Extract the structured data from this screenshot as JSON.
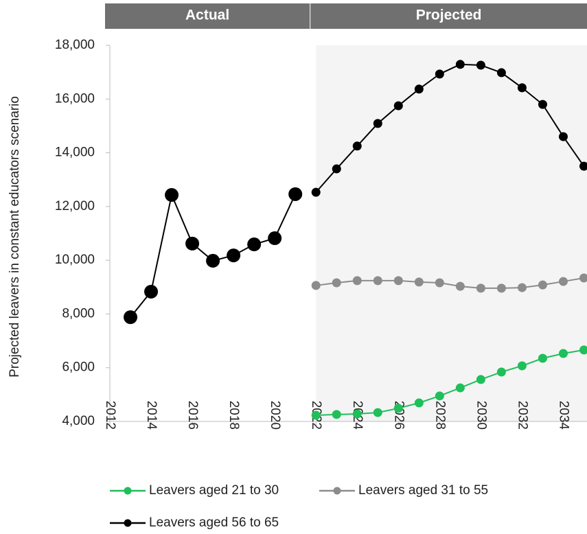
{
  "chart_data": {
    "type": "line",
    "period_labels": [
      "Actual",
      "Projected"
    ],
    "projection_start": 2022,
    "y_label": "Projected leavers in constant educators scenario",
    "x": [
      2013,
      2014,
      2015,
      2016,
      2017,
      2018,
      2019,
      2020,
      2021,
      2022,
      2023,
      2024,
      2025,
      2026,
      2027,
      2028,
      2029,
      2030,
      2031,
      2032,
      2033,
      2034,
      2035
    ],
    "series": [
      {
        "name": "Leavers aged 21 to 30",
        "color": "#1fbf5a",
        "values": [
          null,
          null,
          null,
          null,
          null,
          null,
          null,
          null,
          null,
          4230,
          4260,
          4280,
          4330,
          4490,
          4690,
          4950,
          5250,
          5560,
          5840,
          6070,
          6350,
          6530,
          6660
        ]
      },
      {
        "name": "Leavers aged 31 to 55",
        "color": "#8c8c8c",
        "values": [
          null,
          null,
          null,
          null,
          null,
          null,
          null,
          null,
          null,
          9060,
          9160,
          9240,
          9240,
          9240,
          9190,
          9160,
          9030,
          8960,
          8960,
          8980,
          9080,
          9210,
          9340
        ]
      },
      {
        "name": "Leavers aged 56 to 65",
        "color": "#000000",
        "values": [
          7880,
          8830,
          12430,
          10620,
          9980,
          10180,
          10590,
          10820,
          12460,
          12530,
          13400,
          14250,
          15090,
          15750,
          16370,
          16930,
          17290,
          17260,
          16980,
          16420,
          15800,
          14600,
          13500
        ]
      }
    ],
    "xlim": [
      2012,
      2035.15
    ],
    "xticks": [
      2012,
      2014,
      2016,
      2018,
      2020,
      2022,
      2024,
      2026,
      2028,
      2030,
      2032,
      2034
    ],
    "ylim": [
      4000,
      18000
    ],
    "yticks": [
      {
        "value": 4000,
        "label": "4,000"
      },
      {
        "value": 6000,
        "label": "6,000"
      },
      {
        "value": 8000,
        "label": "8,000"
      },
      {
        "value": 10000,
        "label": "10,000"
      },
      {
        "value": 12000,
        "label": "12,000"
      },
      {
        "value": 14000,
        "label": "14,000"
      },
      {
        "value": 16000,
        "label": "16,000"
      },
      {
        "value": 18000,
        "label": "18,000"
      }
    ]
  }
}
